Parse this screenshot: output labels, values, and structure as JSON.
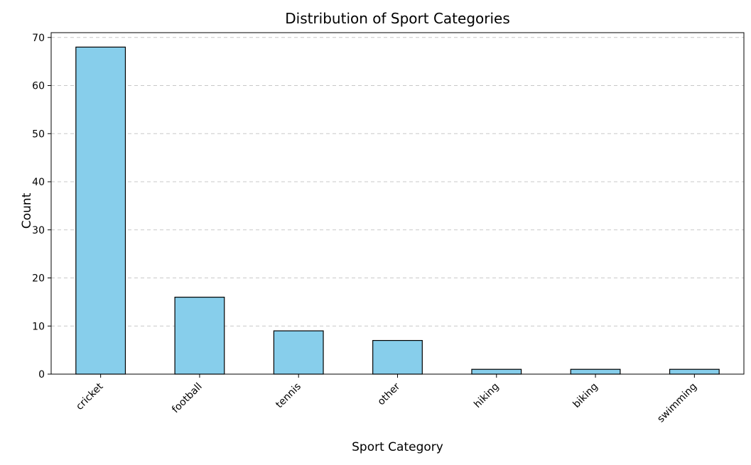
{
  "chart_data": {
    "type": "bar",
    "title": "Distribution of Sport Categories",
    "xlabel": "Sport Category",
    "ylabel": "Count",
    "categories": [
      "cricket",
      "football",
      "tennis",
      "other",
      "hiking",
      "biking",
      "swimming"
    ],
    "values": [
      68,
      16,
      9,
      7,
      1,
      1,
      1
    ],
    "ylim": [
      0,
      71
    ],
    "yticks": [
      0,
      10,
      20,
      30,
      40,
      50,
      60,
      70
    ],
    "grid": {
      "axis": "y",
      "style": "dashed",
      "color": "#c8c8c8"
    },
    "bar_color": "#87ceeb",
    "edge_color": "#000000",
    "xtick_rotation": 45,
    "legend": null
  }
}
